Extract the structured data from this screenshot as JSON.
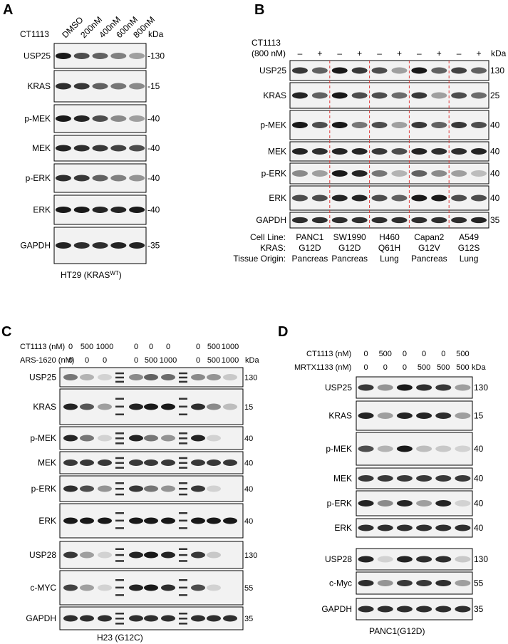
{
  "panels": {
    "A": {
      "letter": "A",
      "treatment_label": "CT1113",
      "lane_labels": [
        "DMSO",
        "200nM",
        "400nM",
        "600nM",
        "800nM"
      ],
      "kda_header": "kDa",
      "blots": [
        {
          "label": "USP25",
          "marker": "-130",
          "intensities": [
            0.95,
            0.7,
            0.6,
            0.45,
            0.3
          ]
        },
        {
          "label": "KRAS",
          "marker": "-15",
          "intensities": [
            0.85,
            0.8,
            0.6,
            0.5,
            0.4
          ]
        },
        {
          "label": "p-MEK",
          "marker": "-40",
          "intensities": [
            0.95,
            0.9,
            0.7,
            0.4,
            0.3
          ]
        },
        {
          "label": "MEK",
          "marker": "-40",
          "intensities": [
            0.9,
            0.85,
            0.8,
            0.75,
            0.7
          ]
        },
        {
          "label": "p-ERK",
          "marker": "-40",
          "intensities": [
            0.85,
            0.8,
            0.6,
            0.45,
            0.35
          ]
        },
        {
          "label": "ERK",
          "marker": "-40",
          "intensities": [
            0.95,
            0.95,
            0.9,
            0.9,
            0.95
          ]
        },
        {
          "label": "GAPDH",
          "marker": "-35",
          "intensities": [
            0.9,
            0.85,
            0.85,
            0.9,
            0.9
          ]
        }
      ],
      "footer_main": "HT29 (KRAS",
      "footer_sup": "WT",
      "footer_end": ")"
    },
    "B": {
      "letter": "B",
      "treatment_line1": "CT1113",
      "treatment_line2": "(800 nM)",
      "lane_signs": [
        "–",
        "+",
        "–",
        "+",
        "–",
        "+",
        "–",
        "+",
        "–",
        "+"
      ],
      "kda_header": "kDa",
      "blots": [
        {
          "label": "USP25",
          "marker": "130",
          "intensities": [
            0.8,
            0.6,
            0.95,
            0.8,
            0.7,
            0.3,
            0.95,
            0.6,
            0.75,
            0.6
          ]
        },
        {
          "label": "KRAS",
          "marker": "25",
          "intensities": [
            0.9,
            0.6,
            0.95,
            0.7,
            0.7,
            0.55,
            0.8,
            0.3,
            0.7,
            0.55
          ]
        },
        {
          "label": "p-MEK",
          "marker": "40",
          "intensities": [
            0.95,
            0.7,
            0.95,
            0.5,
            0.7,
            0.3,
            0.8,
            0.6,
            0.8,
            0.7
          ]
        },
        {
          "label": "MEK",
          "marker": "40",
          "intensities": [
            0.9,
            0.85,
            0.9,
            0.9,
            0.8,
            0.7,
            0.9,
            0.85,
            0.85,
            0.9
          ]
        },
        {
          "label": "p-ERK",
          "marker": "40",
          "intensities": [
            0.4,
            0.3,
            0.95,
            0.9,
            0.5,
            0.2,
            0.6,
            0.4,
            0.3,
            0.15
          ]
        },
        {
          "label": "ERK",
          "marker": "40",
          "intensities": [
            0.7,
            0.7,
            0.9,
            0.9,
            0.7,
            0.6,
            0.95,
            0.95,
            0.7,
            0.7
          ]
        },
        {
          "label": "GAPDH",
          "marker": "35",
          "intensities": [
            0.85,
            0.85,
            0.85,
            0.85,
            0.85,
            0.85,
            0.85,
            0.85,
            0.85,
            0.9
          ]
        }
      ],
      "row_headers": [
        "Cell Line:",
        "KRAS:",
        "Tissue Origin:"
      ],
      "groups": [
        {
          "cell": "PANC1",
          "kras": "G12D",
          "tissue": "Pancreas"
        },
        {
          "cell": "SW1990",
          "kras": "G12D",
          "tissue": "Pancreas"
        },
        {
          "cell": "H460",
          "kras": "Q61H",
          "tissue": "Lung"
        },
        {
          "cell": "Capan2",
          "kras": "G12V",
          "tissue": "Pancreas"
        },
        {
          "cell": "A549",
          "kras": "G12S",
          "tissue": "Lung"
        }
      ]
    },
    "C": {
      "letter": "C",
      "row1_label": "CT1113 (nM)",
      "row2_label": "ARS-1620 (nM)",
      "row1_values": [
        "0",
        "500",
        "1000",
        "0",
        "0",
        "0",
        "0",
        "500",
        "1000"
      ],
      "row2_values": [
        "0",
        "0",
        "0",
        "0",
        "500",
        "1000",
        "0",
        "500",
        "1000"
      ],
      "kda_header": "kDa",
      "blots": [
        {
          "label": "USP25",
          "marker": "130",
          "intensities": [
            0.5,
            0.2,
            0.05,
            0.4,
            0.6,
            0.55,
            0.4,
            0.35,
            0.1
          ]
        },
        {
          "label": "KRAS",
          "marker": "15",
          "intensities": [
            0.9,
            0.65,
            0.3,
            0.9,
            0.95,
            0.95,
            0.85,
            0.4,
            0.15
          ]
        },
        {
          "label": "p-MEK",
          "marker": "40",
          "intensities": [
            0.9,
            0.5,
            0.05,
            0.9,
            0.5,
            0.35,
            0.9,
            0.05,
            0.0
          ]
        },
        {
          "label": "MEK",
          "marker": "40",
          "intensities": [
            0.8,
            0.8,
            0.8,
            0.8,
            0.8,
            0.8,
            0.8,
            0.8,
            0.8
          ]
        },
        {
          "label": "p-ERK",
          "marker": "40",
          "intensities": [
            0.85,
            0.7,
            0.35,
            0.8,
            0.5,
            0.35,
            0.8,
            0.05,
            0.0
          ]
        },
        {
          "label": "ERK",
          "marker": "40",
          "intensities": [
            0.95,
            0.95,
            0.95,
            0.95,
            0.95,
            0.95,
            0.95,
            0.95,
            0.95
          ]
        },
        {
          "label": "USP28",
          "marker": "130",
          "intensities": [
            0.8,
            0.3,
            0.05,
            0.9,
            0.95,
            0.9,
            0.8,
            0.1,
            0.0
          ]
        },
        {
          "label": "c-MYC",
          "marker": "55",
          "intensities": [
            0.75,
            0.3,
            0.05,
            0.9,
            0.95,
            0.85,
            0.7,
            0.05,
            0.0
          ]
        },
        {
          "label": "GAPDH",
          "marker": "35",
          "intensities": [
            0.85,
            0.85,
            0.85,
            0.85,
            0.85,
            0.85,
            0.85,
            0.85,
            0.85
          ]
        }
      ],
      "footer": "H23 (G12C)"
    },
    "D": {
      "letter": "D",
      "row1_label": "CT1113 (nM)",
      "row2_label": "MRTX1133 (nM)",
      "row1_values": [
        "0",
        "500",
        "0",
        "0",
        "0",
        "500"
      ],
      "row2_values": [
        "0",
        "0",
        "0",
        "500",
        "500",
        "500"
      ],
      "kda_header": "kDa",
      "blots": [
        {
          "label": "USP25",
          "marker": "130",
          "intensities": [
            0.8,
            0.35,
            0.95,
            0.85,
            0.8,
            0.3
          ]
        },
        {
          "label": "KRAS",
          "marker": "15",
          "intensities": [
            0.9,
            0.3,
            0.9,
            0.9,
            0.85,
            0.3
          ]
        },
        {
          "label": "p-MEK",
          "marker": "40",
          "intensities": [
            0.7,
            0.2,
            0.95,
            0.15,
            0.1,
            0.05
          ]
        },
        {
          "label": "MEK",
          "marker": "40",
          "intensities": [
            0.8,
            0.8,
            0.8,
            0.8,
            0.8,
            0.8
          ]
        },
        {
          "label": "p-ERK",
          "marker": "40",
          "intensities": [
            0.9,
            0.4,
            0.9,
            0.3,
            0.9,
            0.05
          ]
        },
        {
          "label": "ERK",
          "marker": "40",
          "intensities": [
            0.85,
            0.85,
            0.85,
            0.85,
            0.85,
            0.85
          ]
        },
        {
          "label": "USP28",
          "marker": "130",
          "intensities": [
            0.9,
            0.05,
            0.9,
            0.85,
            0.85,
            0.1
          ]
        },
        {
          "label": "c-Myc",
          "marker": "55",
          "intensities": [
            0.85,
            0.35,
            0.8,
            0.8,
            0.85,
            0.3
          ]
        },
        {
          "label": "GAPDH",
          "marker": "35",
          "intensities": [
            0.85,
            0.85,
            0.85,
            0.85,
            0.85,
            0.85
          ]
        }
      ],
      "footer": "PANC1(G12D)"
    }
  }
}
